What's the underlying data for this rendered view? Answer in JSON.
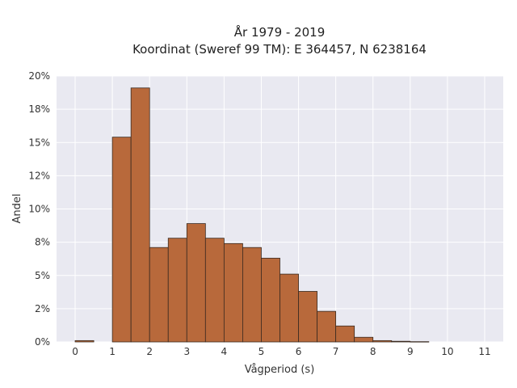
{
  "chart_data": {
    "type": "bar",
    "title_line1": "År 1979 - 2019",
    "title_line2": "Koordinat (Sweref 99 TM): E 364457, N 6238164",
    "xlabel": "Vågperiod (s)",
    "ylabel": "Andel",
    "xlim": [
      -0.5,
      11.5
    ],
    "ylim": [
      0,
      20
    ],
    "xticks": [
      0,
      1,
      2,
      3,
      4,
      5,
      6,
      7,
      8,
      9,
      10,
      11
    ],
    "yticks": [
      0,
      2.5,
      5,
      7.5,
      10,
      12.5,
      15,
      17.5,
      20
    ],
    "ytick_labels": [
      "0%",
      "2%",
      "5%",
      "8%",
      "10%",
      "12%",
      "15%",
      "18%",
      "20%"
    ],
    "bin_width": 0.5,
    "bins": [
      {
        "x0": 0.0,
        "value": 0.1
      },
      {
        "x0": 0.5,
        "value": 0.0
      },
      {
        "x0": 1.0,
        "value": 15.4
      },
      {
        "x0": 1.5,
        "value": 19.1
      },
      {
        "x0": 2.0,
        "value": 7.1
      },
      {
        "x0": 2.5,
        "value": 7.8
      },
      {
        "x0": 3.0,
        "value": 8.9
      },
      {
        "x0": 3.5,
        "value": 7.8
      },
      {
        "x0": 4.0,
        "value": 7.4
      },
      {
        "x0": 4.5,
        "value": 7.1
      },
      {
        "x0": 5.0,
        "value": 6.3
      },
      {
        "x0": 5.5,
        "value": 5.1
      },
      {
        "x0": 6.0,
        "value": 3.8
      },
      {
        "x0": 6.5,
        "value": 2.3
      },
      {
        "x0": 7.0,
        "value": 1.2
      },
      {
        "x0": 7.5,
        "value": 0.35
      },
      {
        "x0": 8.0,
        "value": 0.1
      },
      {
        "x0": 8.5,
        "value": 0.05
      },
      {
        "x0": 9.0,
        "value": 0.02
      }
    ],
    "grid": true,
    "bar_color": "#b8693b",
    "bar_edge_color": "#3a2a20",
    "plot_bg": "#e9e9f1",
    "grid_color": "#ffffff"
  }
}
